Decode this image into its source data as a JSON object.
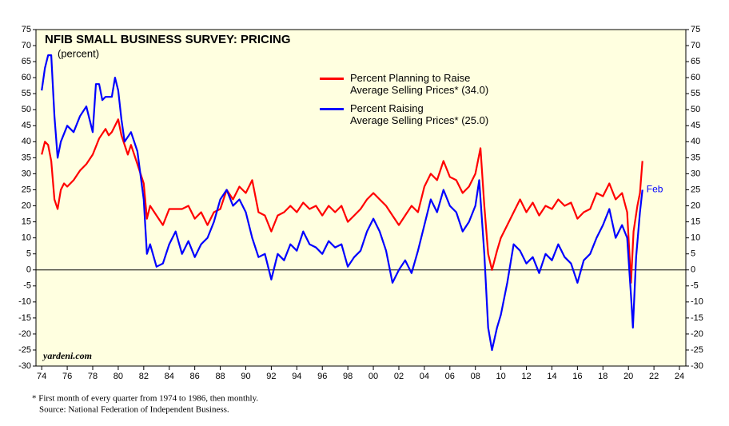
{
  "chart_data": {
    "type": "line",
    "title": "NFIB SMALL BUSINESS SURVEY: PRICING",
    "subtitle": "(percent)",
    "source_mark": "yardeni.com",
    "end_label": "Feb",
    "footnotes": [
      "*  First month of every quarter from 1974 to 1986, then monthly.",
      "Source: National Federation of Independent Business."
    ],
    "xlim": [
      1973.55,
      2024.5
    ],
    "ylim": [
      -30,
      75
    ],
    "xticks": [
      {
        "value": 1974,
        "label": "74"
      },
      {
        "value": 1976,
        "label": "76"
      },
      {
        "value": 1978,
        "label": "78"
      },
      {
        "value": 1980,
        "label": "80"
      },
      {
        "value": 1982,
        "label": "82"
      },
      {
        "value": 1984,
        "label": "84"
      },
      {
        "value": 1986,
        "label": "86"
      },
      {
        "value": 1988,
        "label": "88"
      },
      {
        "value": 1990,
        "label": "90"
      },
      {
        "value": 1992,
        "label": "92"
      },
      {
        "value": 1994,
        "label": "94"
      },
      {
        "value": 1996,
        "label": "96"
      },
      {
        "value": 1998,
        "label": "98"
      },
      {
        "value": 2000,
        "label": "00"
      },
      {
        "value": 2002,
        "label": "02"
      },
      {
        "value": 2004,
        "label": "04"
      },
      {
        "value": 2006,
        "label": "06"
      },
      {
        "value": 2008,
        "label": "08"
      },
      {
        "value": 2010,
        "label": "10"
      },
      {
        "value": 2012,
        "label": "12"
      },
      {
        "value": 2014,
        "label": "14"
      },
      {
        "value": 2016,
        "label": "16"
      },
      {
        "value": 2018,
        "label": "18"
      },
      {
        "value": 2020,
        "label": "20"
      },
      {
        "value": 2022,
        "label": "22"
      },
      {
        "value": 2024,
        "label": "24"
      }
    ],
    "yticks": [
      -30,
      -25,
      -20,
      -15,
      -10,
      -5,
      0,
      5,
      10,
      15,
      20,
      25,
      30,
      35,
      40,
      45,
      50,
      55,
      60,
      65,
      70,
      75
    ],
    "zero_line": true,
    "series": [
      {
        "name": "Percent Planning to Raise\nAverage Selling Prices* (34.0)",
        "color": "#ff0000",
        "x": [
          1974.0,
          1974.25,
          1974.5,
          1974.75,
          1975.0,
          1975.25,
          1975.5,
          1975.75,
          1976.0,
          1976.5,
          1977.0,
          1977.5,
          1978.0,
          1978.5,
          1979.0,
          1979.25,
          1979.5,
          1980.0,
          1980.25,
          1980.5,
          1980.75,
          1981.0,
          1981.5,
          1982.0,
          1982.25,
          1982.5,
          1983.0,
          1983.5,
          1984.0,
          1985.0,
          1985.5,
          1986.0,
          1986.5,
          1987.0,
          1987.5,
          1988.0,
          1988.5,
          1989.0,
          1989.5,
          1990.0,
          1990.5,
          1991.0,
          1991.5,
          1992.0,
          1992.5,
          1993.0,
          1993.5,
          1994.0,
          1994.5,
          1995.0,
          1995.5,
          1996.0,
          1996.5,
          1997.0,
          1997.5,
          1998.0,
          1998.5,
          1999.0,
          1999.5,
          2000.0,
          2000.5,
          2001.0,
          2001.5,
          2002.0,
          2002.5,
          2003.0,
          2003.5,
          2004.0,
          2004.5,
          2005.0,
          2005.5,
          2006.0,
          2006.5,
          2007.0,
          2007.5,
          2008.0,
          2008.4,
          2008.7,
          2009.0,
          2009.3,
          2009.7,
          2010.0,
          2010.5,
          2011.0,
          2011.5,
          2012.0,
          2012.5,
          2013.0,
          2013.5,
          2014.0,
          2014.5,
          2015.0,
          2015.5,
          2016.0,
          2016.5,
          2017.0,
          2017.5,
          2018.0,
          2018.5,
          2019.0,
          2019.5,
          2019.9,
          2020.2,
          2020.4,
          2020.7,
          2020.9,
          2021.1
        ],
        "values": [
          36,
          40,
          39,
          34,
          22,
          19,
          25,
          27,
          26,
          28,
          31,
          33,
          36,
          41,
          44,
          42,
          43,
          47,
          42,
          39,
          36,
          39,
          33,
          27,
          16,
          20,
          17,
          14,
          19,
          19,
          20,
          16,
          18,
          14,
          18,
          19,
          25,
          22,
          26,
          24,
          28,
          18,
          17,
          12,
          17,
          18,
          20,
          18,
          21,
          19,
          20,
          17,
          20,
          18,
          20,
          15,
          17,
          19,
          22,
          24,
          22,
          20,
          17,
          14,
          17,
          20,
          18,
          26,
          30,
          28,
          34,
          29,
          28,
          24,
          26,
          30,
          38,
          20,
          5,
          0,
          6,
          10,
          14,
          18,
          22,
          18,
          21,
          17,
          20,
          19,
          22,
          20,
          21,
          16,
          18,
          19,
          24,
          23,
          27,
          22,
          24,
          18,
          -4,
          12,
          20,
          24,
          34
        ]
      },
      {
        "name": "Percent Raising\nAverage Selling Prices* (25.0)",
        "color": "#0000ff",
        "x": [
          1974.0,
          1974.25,
          1974.5,
          1974.75,
          1975.0,
          1975.25,
          1975.5,
          1976.0,
          1976.5,
          1977.0,
          1977.5,
          1978.0,
          1978.25,
          1978.5,
          1978.75,
          1979.0,
          1979.5,
          1979.75,
          1980.0,
          1980.25,
          1980.5,
          1981.0,
          1981.5,
          1982.0,
          1982.25,
          1982.5,
          1983.0,
          1983.5,
          1984.0,
          1984.5,
          1985.0,
          1985.5,
          1986.0,
          1986.5,
          1987.0,
          1987.5,
          1988.0,
          1988.5,
          1989.0,
          1989.5,
          1990.0,
          1990.5,
          1991.0,
          1991.5,
          1992.0,
          1992.5,
          1993.0,
          1993.5,
          1994.0,
          1994.5,
          1995.0,
          1995.5,
          1996.0,
          1996.5,
          1997.0,
          1997.5,
          1998.0,
          1998.5,
          1999.0,
          1999.5,
          2000.0,
          2000.5,
          2001.0,
          2001.5,
          2002.0,
          2002.5,
          2003.0,
          2003.5,
          2004.0,
          2004.5,
          2005.0,
          2005.5,
          2006.0,
          2006.5,
          2007.0,
          2007.5,
          2008.0,
          2008.3,
          2008.7,
          2009.0,
          2009.3,
          2009.7,
          2010.0,
          2010.5,
          2011.0,
          2011.5,
          2012.0,
          2012.5,
          2013.0,
          2013.5,
          2014.0,
          2014.5,
          2015.0,
          2015.5,
          2016.0,
          2016.5,
          2017.0,
          2017.5,
          2018.0,
          2018.5,
          2019.0,
          2019.5,
          2019.9,
          2020.2,
          2020.35,
          2020.6,
          2020.9,
          2021.1
        ],
        "values": [
          56,
          63,
          67,
          67,
          48,
          35,
          40,
          45,
          43,
          48,
          51,
          43,
          58,
          58,
          53,
          54,
          54,
          60,
          56,
          47,
          40,
          43,
          37,
          22,
          5,
          8,
          1,
          2,
          8,
          12,
          5,
          9,
          4,
          8,
          10,
          15,
          22,
          25,
          20,
          22,
          18,
          10,
          4,
          5,
          -3,
          5,
          3,
          8,
          6,
          12,
          8,
          7,
          5,
          9,
          7,
          8,
          1,
          4,
          6,
          12,
          16,
          12,
          6,
          -4,
          0,
          3,
          -1,
          6,
          14,
          22,
          18,
          25,
          20,
          18,
          12,
          15,
          20,
          28,
          5,
          -18,
          -25,
          -18,
          -14,
          -4,
          8,
          6,
          2,
          4,
          -1,
          5,
          3,
          8,
          4,
          2,
          -4,
          3,
          5,
          10,
          14,
          19,
          10,
          14,
          10,
          -8,
          -18,
          4,
          18,
          25
        ]
      }
    ]
  }
}
